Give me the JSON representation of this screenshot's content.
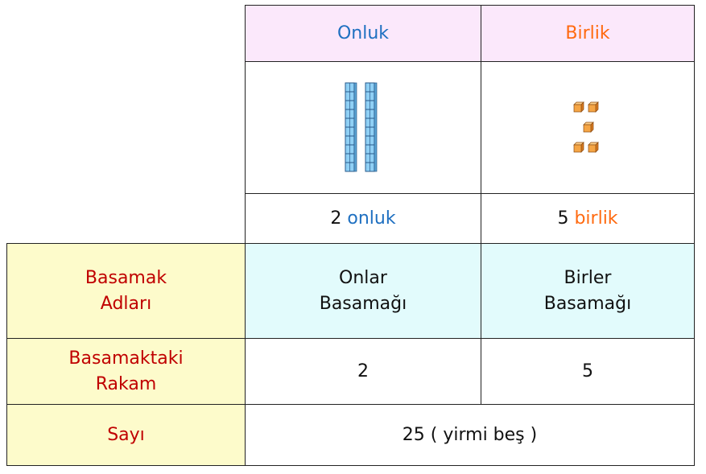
{
  "table": {
    "headers": [
      "Onluk",
      "Birlik"
    ],
    "counts": [
      {
        "number": "2",
        "unit": "onluk"
      },
      {
        "number": "5",
        "unit": "birlik"
      }
    ],
    "rows": [
      {
        "label": [
          "Basamak",
          "Adları"
        ],
        "cells": [
          [
            "Onlar",
            "Basamağı"
          ],
          [
            "Birler",
            "Basamağı"
          ]
        ]
      },
      {
        "label": [
          "Basamaktaki",
          "Rakam"
        ],
        "cells": [
          [
            "2"
          ],
          [
            "5"
          ]
        ]
      }
    ],
    "total": {
      "label": "Sayı",
      "value": "25 ( yirmi beş )"
    }
  }
}
